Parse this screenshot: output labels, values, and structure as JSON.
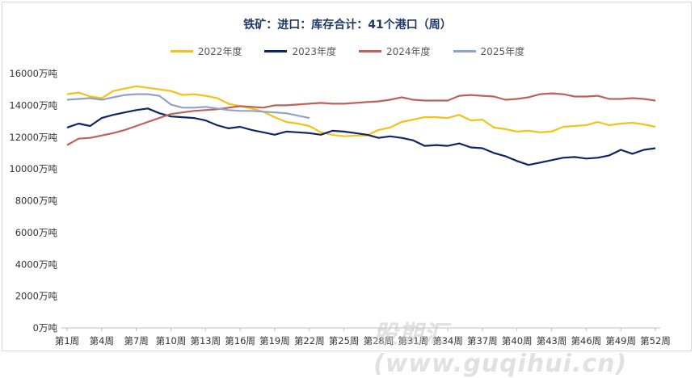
{
  "chart_data": {
    "type": "line",
    "title": "铁矿：进口：库存合计：41个港口（周）",
    "ylabel": "",
    "xlabel": "",
    "ylim": [
      0,
      16000
    ],
    "y_ticks": [
      "0万吨",
      "2000万吨",
      "4000万吨",
      "6000万吨",
      "8000万吨",
      "10000万吨",
      "12000万吨",
      "14000万吨",
      "16000万吨"
    ],
    "x_tick_labels": [
      "第1周",
      "第4周",
      "第7周",
      "第10周",
      "第13周",
      "第16周",
      "第19周",
      "第22周",
      "第25周",
      "第28周",
      "第31周",
      "第34周",
      "第37周",
      "第40周",
      "第43周",
      "第46周",
      "第49周",
      "第52周"
    ],
    "x_tick_weeks": [
      1,
      4,
      7,
      10,
      13,
      16,
      19,
      22,
      25,
      28,
      31,
      34,
      37,
      40,
      43,
      46,
      49,
      52
    ],
    "legend_position": "top",
    "series": [
      {
        "name": "2022年度",
        "color": "#f5c116",
        "values": [
          14700,
          14800,
          14550,
          14450,
          14900,
          15050,
          15200,
          15100,
          15000,
          14900,
          14650,
          14700,
          14600,
          14450,
          14100,
          13950,
          13800,
          13600,
          13250,
          12950,
          12850,
          12700,
          12300,
          12150,
          12050,
          12100,
          12100,
          12450,
          12600,
          12950,
          13100,
          13250,
          13250,
          13200,
          13400,
          13050,
          13100,
          12600,
          12500,
          12350,
          12400,
          12300,
          12350,
          12650,
          12700,
          12750,
          12950,
          12750,
          12850,
          12900,
          12800,
          12650
        ]
      },
      {
        "name": "2023年度",
        "color": "#0f2566",
        "values": [
          12600,
          12850,
          12700,
          13200,
          13400,
          13550,
          13700,
          13800,
          13500,
          13300,
          13250,
          13200,
          13050,
          12750,
          12550,
          12650,
          12450,
          12300,
          12150,
          12350,
          12300,
          12250,
          12150,
          12400,
          12350,
          12250,
          12150,
          11950,
          12050,
          11950,
          11800,
          11450,
          11500,
          11450,
          11600,
          11350,
          11300,
          11000,
          10800,
          10500,
          10250,
          10400,
          10550,
          10700,
          10750,
          10650,
          10700,
          10850,
          11200,
          10950,
          11200,
          11300
        ]
      },
      {
        "name": "2024年度",
        "color": "#c0605a",
        "values": [
          11500,
          11900,
          11950,
          12100,
          12250,
          12450,
          12700,
          12950,
          13200,
          13450,
          13550,
          13650,
          13700,
          13750,
          13850,
          13950,
          13900,
          13850,
          14000,
          14000,
          14050,
          14100,
          14150,
          14100,
          14100,
          14150,
          14200,
          14250,
          14350,
          14500,
          14350,
          14300,
          14300,
          14300,
          14600,
          14650,
          14600,
          14550,
          14350,
          14400,
          14500,
          14700,
          14750,
          14700,
          14550,
          14550,
          14600,
          14400,
          14400,
          14450,
          14400,
          14300
        ]
      },
      {
        "name": "2025年度",
        "color": "#8fa3c6",
        "values": [
          14350,
          14400,
          14450,
          14350,
          14500,
          14650,
          14700,
          14700,
          14600,
          14050,
          13850,
          13850,
          13900,
          13800,
          13700,
          13650,
          13650,
          13600,
          13550,
          13500,
          13350,
          13200
        ]
      }
    ]
  },
  "watermark": "股期汇(www.guqihui.cn)"
}
